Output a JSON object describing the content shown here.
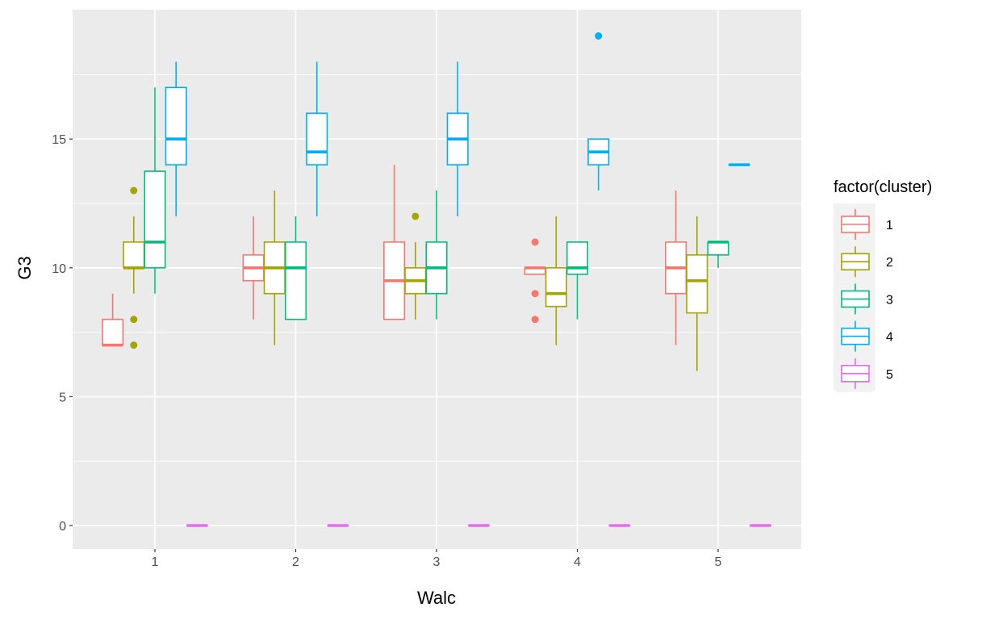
{
  "chart_data": {
    "type": "boxplot",
    "title": "",
    "xlabel": "Walc",
    "ylabel": "G3",
    "ylim": [
      -0.9,
      20
    ],
    "yticks": [
      0,
      5,
      10,
      15
    ],
    "categories": [
      "1",
      "2",
      "3",
      "4",
      "5"
    ],
    "grid": true,
    "legend": {
      "title": "factor(cluster)",
      "position": "right",
      "labels": [
        "1",
        "2",
        "3",
        "4",
        "5"
      ]
    },
    "colors": [
      "#F8766D",
      "#A3A500",
      "#00BF7D",
      "#00B0F6",
      "#E76BF3"
    ],
    "series": [
      {
        "name": "1",
        "boxes": [
          {
            "lo": 7,
            "q1": 7,
            "med": 7,
            "q3": 8,
            "hi": 9,
            "outliers": []
          },
          {
            "lo": 8,
            "q1": 9.5,
            "med": 10,
            "q3": 10.5,
            "hi": 12,
            "outliers": []
          },
          {
            "lo": 8,
            "q1": 8,
            "med": 9.5,
            "q3": 11,
            "hi": 14,
            "outliers": []
          },
          {
            "lo": 9.75,
            "q1": 9.75,
            "med": 10,
            "q3": 10,
            "hi": 10,
            "outliers": [
              11,
              9,
              8
            ]
          },
          {
            "lo": 7,
            "q1": 9,
            "med": 10,
            "q3": 11,
            "hi": 13,
            "outliers": []
          }
        ]
      },
      {
        "name": "2",
        "boxes": [
          {
            "lo": 9,
            "q1": 10,
            "med": 10,
            "q3": 11,
            "hi": 12,
            "outliers": [
              13,
              8,
              7
            ]
          },
          {
            "lo": 7,
            "q1": 9,
            "med": 10,
            "q3": 11,
            "hi": 13,
            "outliers": []
          },
          {
            "lo": 8,
            "q1": 9,
            "med": 9.5,
            "q3": 10,
            "hi": 11,
            "outliers": [
              12
            ]
          },
          {
            "lo": 7,
            "q1": 8.5,
            "med": 9,
            "q3": 10,
            "hi": 12,
            "outliers": []
          },
          {
            "lo": 6,
            "q1": 8.25,
            "med": 9.5,
            "q3": 10.5,
            "hi": 12,
            "outliers": []
          }
        ]
      },
      {
        "name": "3",
        "boxes": [
          {
            "lo": 9,
            "q1": 10,
            "med": 11,
            "q3": 13.75,
            "hi": 17,
            "outliers": []
          },
          {
            "lo": 8,
            "q1": 8,
            "med": 10,
            "q3": 11,
            "hi": 12,
            "outliers": []
          },
          {
            "lo": 8,
            "q1": 9,
            "med": 10,
            "q3": 11,
            "hi": 13,
            "outliers": []
          },
          {
            "lo": 8,
            "q1": 9.75,
            "med": 10,
            "q3": 11,
            "hi": 11,
            "outliers": []
          },
          {
            "lo": 10,
            "q1": 10.5,
            "med": 11,
            "q3": 11,
            "hi": 11,
            "outliers": []
          }
        ]
      },
      {
        "name": "4",
        "boxes": [
          {
            "lo": 12,
            "q1": 14,
            "med": 15,
            "q3": 17,
            "hi": 18,
            "outliers": []
          },
          {
            "lo": 12,
            "q1": 14,
            "med": 14.5,
            "q3": 16,
            "hi": 18,
            "outliers": []
          },
          {
            "lo": 12,
            "q1": 14,
            "med": 15,
            "q3": 16,
            "hi": 18,
            "outliers": []
          },
          {
            "lo": 13,
            "q1": 14,
            "med": 14.5,
            "q3": 15,
            "hi": 15,
            "outliers": [
              19
            ]
          },
          {
            "lo": 14,
            "q1": 14,
            "med": 14,
            "q3": 14,
            "hi": 14,
            "outliers": []
          }
        ]
      },
      {
        "name": "5",
        "boxes": [
          {
            "lo": 0,
            "q1": 0,
            "med": 0,
            "q3": 0,
            "hi": 0,
            "outliers": []
          },
          {
            "lo": 0,
            "q1": 0,
            "med": 0,
            "q3": 0,
            "hi": 0,
            "outliers": []
          },
          {
            "lo": 0,
            "q1": 0,
            "med": 0,
            "q3": 0,
            "hi": 0,
            "outliers": []
          },
          {
            "lo": 0,
            "q1": 0,
            "med": 0,
            "q3": 0,
            "hi": 0,
            "outliers": []
          },
          {
            "lo": 0,
            "q1": 0,
            "med": 0,
            "q3": 0,
            "hi": 0,
            "outliers": []
          }
        ]
      }
    ]
  }
}
